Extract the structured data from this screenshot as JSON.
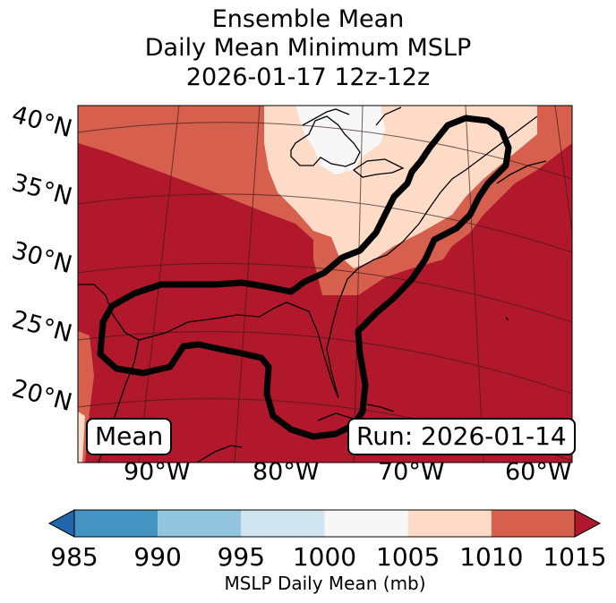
{
  "title": {
    "line1": "Ensemble Mean",
    "line2": "Daily Mean Minimum MSLP",
    "line3": "2026-01-17 12z-12z"
  },
  "lat_labels": [
    "40°N",
    "35°N",
    "30°N",
    "25°N",
    "20°N"
  ],
  "lon_labels": [
    "90°W",
    "80°W",
    "70°W",
    "60°W"
  ],
  "left_box": "Mean",
  "right_box": "Run: 2026-01-14",
  "colorbar": {
    "ticks": [
      "985",
      "990",
      "995",
      "1000",
      "1005",
      "1010",
      "1015"
    ],
    "label": "MSLP Daily Mean (mb)",
    "colors": [
      "#2166ac",
      "#4393c3",
      "#92c5de",
      "#d1e5f0",
      "#f7f7f7",
      "#fddbc7",
      "#d6604d",
      "#b2182b"
    ]
  },
  "colors": {
    "high": "#b2182b",
    "mid_high": "#d6604d",
    "mid": "#fddbc7",
    "low": "#f7f7f7"
  }
}
